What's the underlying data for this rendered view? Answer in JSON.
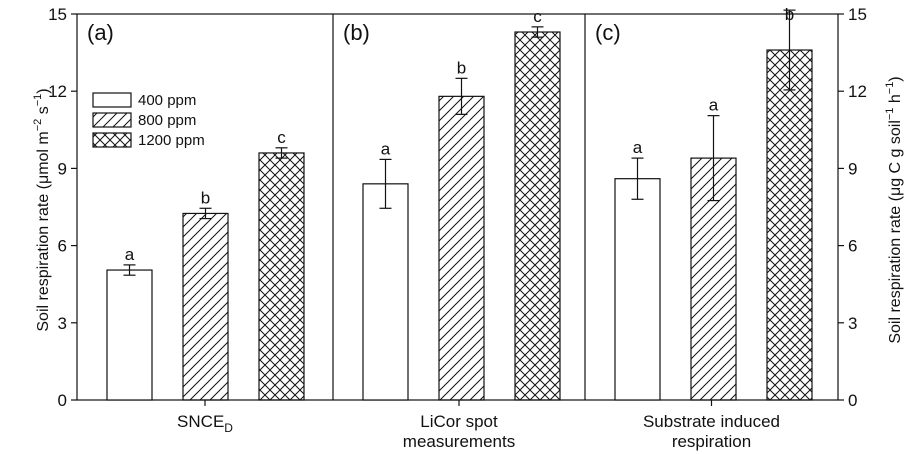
{
  "chart_data": {
    "type": "bar",
    "ylabel_left": [
      "Soil respiration rate (μmol m",
      "−2",
      " s",
      "−1",
      ")"
    ],
    "ylabel_right": [
      "Soil respiration rate (μg C g soil",
      "−1",
      " h",
      "−1",
      ")"
    ],
    "ylim": [
      0,
      15
    ],
    "yticks": [
      "0",
      "3",
      "6",
      "9",
      "12",
      "15"
    ],
    "legend": {
      "placement": "upper-left of panel (a)",
      "entries": [
        {
          "label": "400 ppm",
          "pattern": "open"
        },
        {
          "label": "800 ppm",
          "pattern": "hatch"
        },
        {
          "label": "1200 ppm",
          "pattern": "crosshatch"
        }
      ]
    },
    "panels": [
      {
        "label": "(a)",
        "group_label": [
          "SNCE",
          "D"
        ],
        "bars": [
          {
            "series": "400 ppm",
            "value": 5.05,
            "error": 0.2,
            "letter": "a"
          },
          {
            "series": "800 ppm",
            "value": 7.25,
            "error": 0.2,
            "letter": "b"
          },
          {
            "series": "1200 ppm",
            "value": 9.6,
            "error": 0.2,
            "letter": "c"
          }
        ]
      },
      {
        "label": "(b)",
        "group_label": [
          "LiCor spot",
          "measurements"
        ],
        "bars": [
          {
            "series": "400 ppm",
            "value": 8.4,
            "error": 0.95,
            "letter": "a"
          },
          {
            "series": "800 ppm",
            "value": 11.8,
            "error": 0.7,
            "letter": "b"
          },
          {
            "series": "1200 ppm",
            "value": 14.3,
            "error": 0.2,
            "letter": "c"
          }
        ]
      },
      {
        "label": "(c)",
        "group_label": [
          "Substrate induced",
          "respiration"
        ],
        "bars": [
          {
            "series": "400 ppm",
            "value": 8.6,
            "error": 0.8,
            "letter": "a"
          },
          {
            "series": "800 ppm",
            "value": 9.4,
            "error": 1.65,
            "letter": "a"
          },
          {
            "series": "1200 ppm",
            "value": 13.6,
            "error": 1.55,
            "letter": "b"
          }
        ]
      }
    ]
  }
}
